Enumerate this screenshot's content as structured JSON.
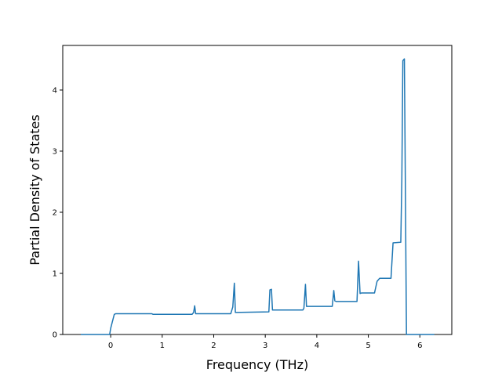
{
  "chart_data": {
    "type": "line",
    "title": "",
    "xlabel": "Frequency (THz)",
    "ylabel": "Partial Density of States",
    "xlim": [
      -0.93,
      6.62
    ],
    "ylim": [
      0,
      4.73
    ],
    "xticks": [
      0,
      1,
      2,
      3,
      4,
      5,
      6
    ],
    "yticks": [
      0,
      1,
      2,
      3,
      4
    ],
    "grid": false,
    "series": [
      {
        "name": "",
        "color": "#1f77b4",
        "x": [
          -0.58,
          -0.02,
          0.0,
          0.03,
          0.07,
          0.1,
          0.8,
          0.82,
          1.58,
          1.61,
          1.63,
          1.65,
          2.33,
          2.37,
          2.4,
          2.42,
          3.07,
          3.09,
          3.12,
          3.14,
          3.7,
          3.73,
          3.75,
          3.78,
          3.8,
          4.3,
          4.33,
          4.35,
          4.38,
          4.78,
          4.81,
          4.84,
          4.87,
          5.12,
          5.17,
          5.22,
          5.44,
          5.48,
          5.63,
          5.65,
          5.67,
          5.7,
          5.72,
          5.74,
          5.76,
          6.28
        ],
        "y": [
          0.0,
          0.0,
          0.1,
          0.2,
          0.33,
          0.34,
          0.34,
          0.33,
          0.33,
          0.36,
          0.47,
          0.34,
          0.34,
          0.45,
          0.84,
          0.36,
          0.37,
          0.73,
          0.74,
          0.4,
          0.4,
          0.4,
          0.43,
          0.82,
          0.46,
          0.46,
          0.72,
          0.55,
          0.54,
          0.54,
          1.2,
          0.67,
          0.68,
          0.68,
          0.87,
          0.92,
          0.92,
          1.5,
          1.51,
          2.5,
          4.48,
          4.51,
          2.3,
          0.0,
          0.0,
          0.0
        ]
      }
    ]
  }
}
